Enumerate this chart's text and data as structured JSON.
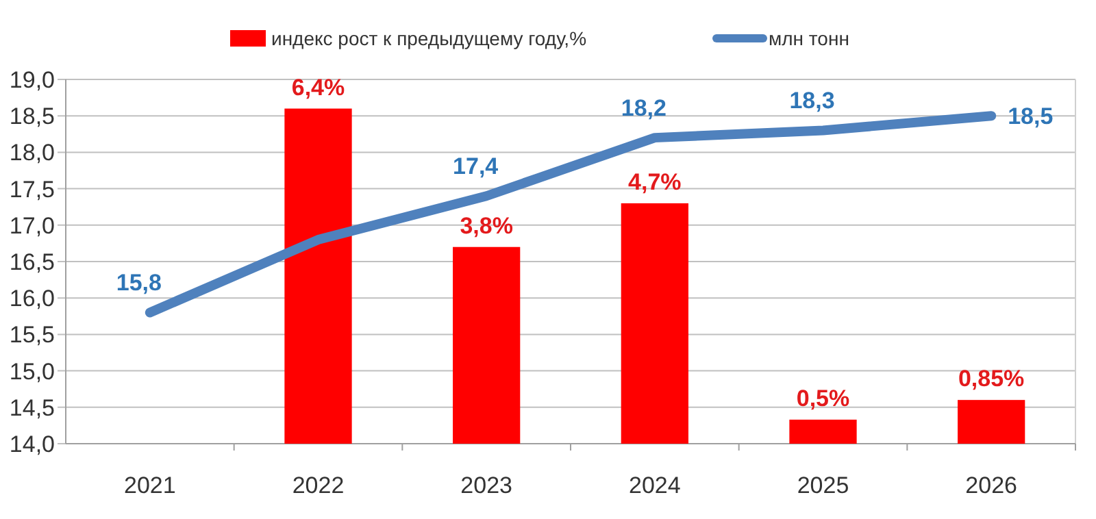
{
  "chart_data": {
    "type": "bar",
    "categories": [
      "2021",
      "2022",
      "2023",
      "2024",
      "2025",
      "2026"
    ],
    "series": [
      {
        "name": "индекс рост к предыдущему году,%",
        "color": "#ff0000",
        "values": [
          null,
          18.6,
          16.7,
          17.3,
          14.33,
          14.6
        ]
      },
      {
        "name": "млн тонн",
        "type": "line",
        "color": "#4f81bd",
        "values": [
          15.8,
          16.8,
          17.4,
          18.2,
          18.3,
          18.5
        ],
        "value_labels": [
          "15,8",
          null,
          "17,4",
          "18,2",
          "18,3",
          "18,5"
        ]
      }
    ],
    "ylim": [
      14,
      19
    ],
    "yticks": [
      {
        "value": 14,
        "label": "14,0"
      },
      {
        "value": 14.5,
        "label": "14,5"
      },
      {
        "value": 15,
        "label": "15,0"
      },
      {
        "value": 15.5,
        "label": "15,5"
      },
      {
        "value": 16,
        "label": "16,0"
      },
      {
        "value": 16.5,
        "label": "16,5"
      },
      {
        "value": 17,
        "label": "17,0"
      },
      {
        "value": 17.5,
        "label": "17,5"
      },
      {
        "value": 18,
        "label": "18,0"
      },
      {
        "value": 18.5,
        "label": "18,5"
      },
      {
        "value": 19,
        "label": "19,0"
      }
    ],
    "annotations": [
      {
        "text": "6,4%",
        "x": "2022",
        "y": 18.6
      },
      {
        "text": "3,8%",
        "x": "2023",
        "y": 16.7
      },
      {
        "text": "4,7%",
        "x": "2024",
        "y": 17.3
      },
      {
        "text": "0,5%",
        "x": "2025",
        "y": 14.33
      },
      {
        "text": "0,85%",
        "x": "2026",
        "y": 14.6
      }
    ],
    "grid": "y",
    "legend": "top",
    "marker": "none",
    "line_style": "solid"
  }
}
